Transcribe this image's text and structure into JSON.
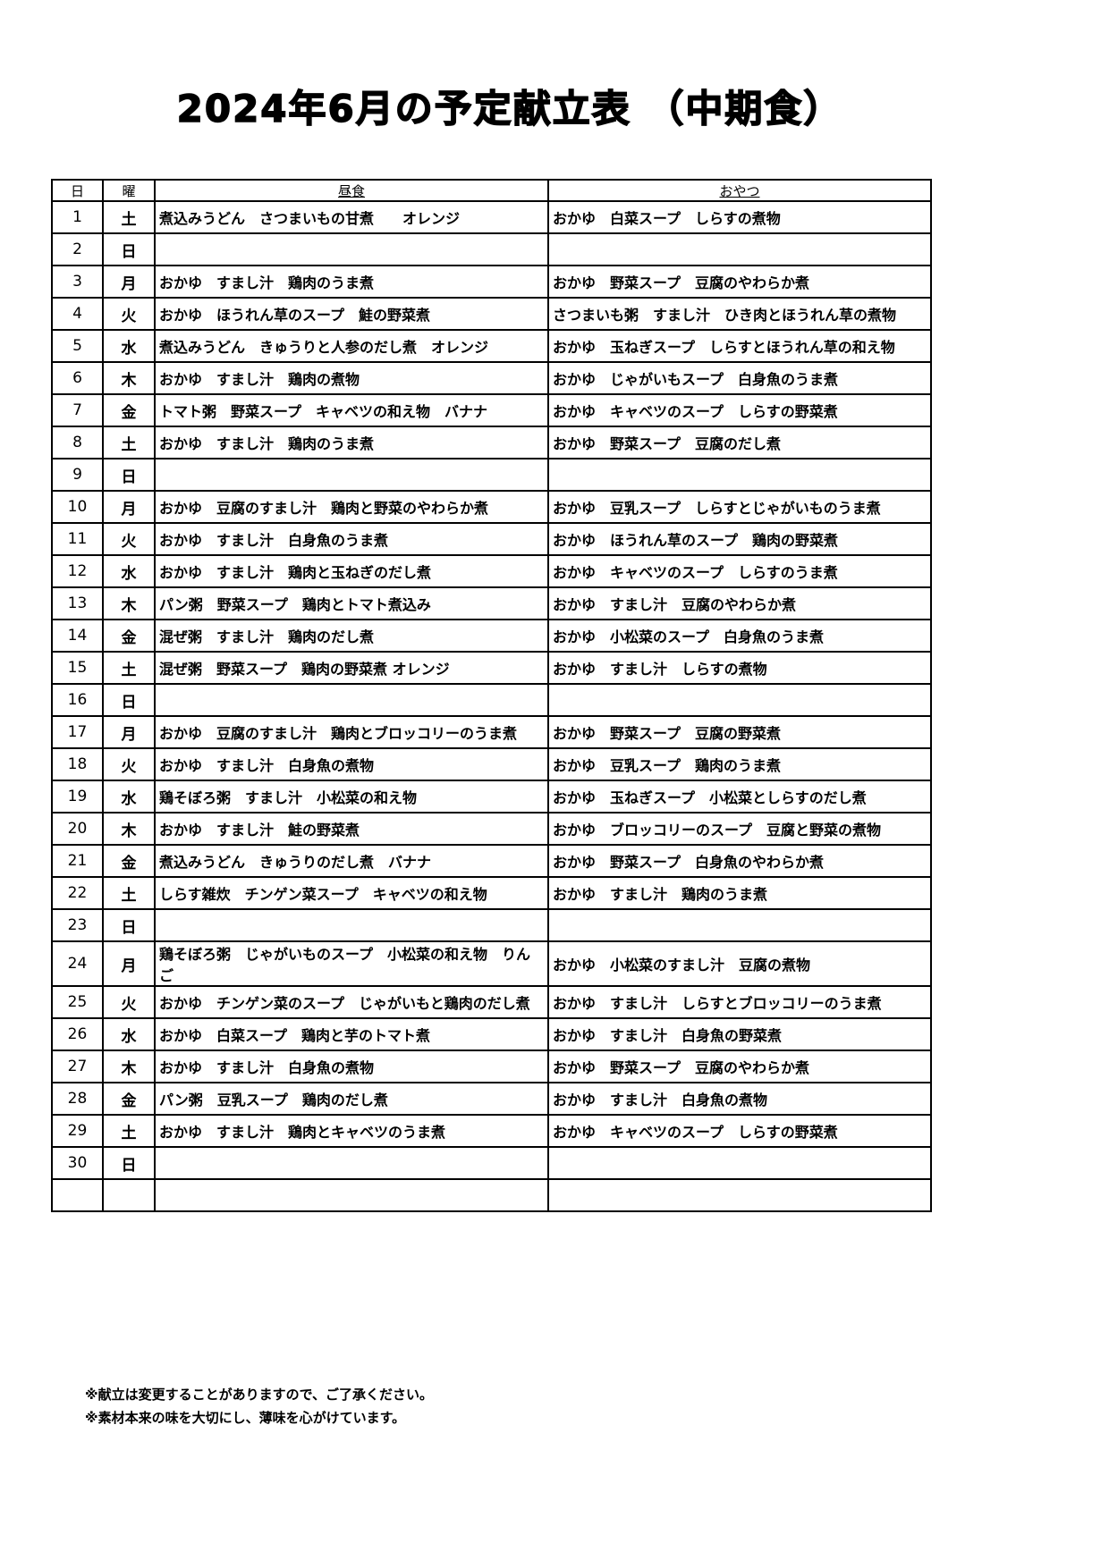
{
  "title": "2024年6月の予定献立表 （中期食）",
  "table": {
    "headers": {
      "day": "日",
      "weekday": "曜",
      "lunch": "昼食",
      "snack": "おやつ"
    },
    "rows": [
      {
        "day": "1",
        "weekday": "土",
        "lunch": "煮込みうどん　さつまいもの甘煮　　オレンジ",
        "snack": "おかゆ　白菜スープ　しらすの煮物"
      },
      {
        "day": "2",
        "weekday": "日",
        "lunch": "",
        "snack": ""
      },
      {
        "day": "3",
        "weekday": "月",
        "lunch": "おかゆ　すまし汁　鶏肉のうま煮",
        "snack": "おかゆ　野菜スープ　豆腐のやわらか煮"
      },
      {
        "day": "4",
        "weekday": "火",
        "lunch": "おかゆ　ほうれん草のスープ　鮭の野菜煮",
        "snack": "さつまいも粥　すまし汁　ひき肉とほうれん草の煮物"
      },
      {
        "day": "5",
        "weekday": "水",
        "lunch": "煮込みうどん　きゅうりと人参のだし煮　オレンジ",
        "snack": "おかゆ　玉ねぎスープ　しらすとほうれん草の和え物"
      },
      {
        "day": "6",
        "weekday": "木",
        "lunch": "おかゆ　すまし汁　鶏肉の煮物",
        "snack": "おかゆ　じゃがいもスープ　白身魚のうま煮"
      },
      {
        "day": "7",
        "weekday": "金",
        "lunch": "トマト粥　野菜スープ　キャベツの和え物　バナナ",
        "snack": "おかゆ　キャベツのスープ　しらすの野菜煮"
      },
      {
        "day": "8",
        "weekday": "土",
        "lunch": "おかゆ　すまし汁　鶏肉のうま煮",
        "snack": "おかゆ　野菜スープ　豆腐のだし煮"
      },
      {
        "day": "9",
        "weekday": "日",
        "lunch": "",
        "snack": ""
      },
      {
        "day": "10",
        "weekday": "月",
        "lunch": "おかゆ　豆腐のすまし汁　鶏肉と野菜のやわらか煮",
        "snack": "おかゆ　豆乳スープ　しらすとじゃがいものうま煮"
      },
      {
        "day": "11",
        "weekday": "火",
        "lunch": "おかゆ　すまし汁　白身魚のうま煮",
        "snack": "おかゆ　ほうれん草のスープ　鶏肉の野菜煮"
      },
      {
        "day": "12",
        "weekday": "水",
        "lunch": "おかゆ　すまし汁　鶏肉と玉ねぎのだし煮",
        "snack": "おかゆ　キャベツのスープ　しらすのうま煮"
      },
      {
        "day": "13",
        "weekday": "木",
        "lunch": "パン粥　野菜スープ　鶏肉とトマト煮込み",
        "snack": "おかゆ　すまし汁　豆腐のやわらか煮"
      },
      {
        "day": "14",
        "weekday": "金",
        "lunch": "混ぜ粥　すまし汁　鶏肉のだし煮",
        "snack": "おかゆ　小松菜のスープ　白身魚のうま煮"
      },
      {
        "day": "15",
        "weekday": "土",
        "lunch": "混ぜ粥　野菜スープ　鶏肉の野菜煮 オレンジ",
        "snack": "おかゆ　すまし汁　しらすの煮物"
      },
      {
        "day": "16",
        "weekday": "日",
        "lunch": "",
        "snack": ""
      },
      {
        "day": "17",
        "weekday": "月",
        "lunch": "おかゆ　豆腐のすまし汁　鶏肉とブロッコリーのうま煮",
        "snack": "おかゆ　野菜スープ　豆腐の野菜煮"
      },
      {
        "day": "18",
        "weekday": "火",
        "lunch": "おかゆ　すまし汁　白身魚の煮物",
        "snack": "おかゆ　豆乳スープ　鶏肉のうま煮"
      },
      {
        "day": "19",
        "weekday": "水",
        "lunch": "鶏そぼろ粥　すまし汁　小松菜の和え物",
        "snack": "おかゆ　玉ねぎスープ　小松菜としらすのだし煮"
      },
      {
        "day": "20",
        "weekday": "木",
        "lunch": "おかゆ　すまし汁　鮭の野菜煮",
        "snack": "おかゆ　ブロッコリーのスープ　豆腐と野菜の煮物"
      },
      {
        "day": "21",
        "weekday": "金",
        "lunch": "煮込みうどん　きゅうりのだし煮　バナナ",
        "snack": "おかゆ　野菜スープ　白身魚のやわらか煮"
      },
      {
        "day": "22",
        "weekday": "土",
        "lunch": "しらす雑炊　チンゲン菜スープ　キャベツの和え物",
        "snack": "おかゆ　すまし汁　鶏肉のうま煮"
      },
      {
        "day": "23",
        "weekday": "日",
        "lunch": "",
        "snack": ""
      },
      {
        "day": "24",
        "weekday": "月",
        "lunch": "鶏そぼろ粥　じゃがいものスープ　小松菜の和え物　りんご",
        "snack": "おかゆ　小松菜のすまし汁　豆腐の煮物"
      },
      {
        "day": "25",
        "weekday": "火",
        "lunch": "おかゆ　チンゲン菜のスープ　じゃがいもと鶏肉のだし煮",
        "snack": "おかゆ　すまし汁　しらすとブロッコリーのうま煮"
      },
      {
        "day": "26",
        "weekday": "水",
        "lunch": "おかゆ　白菜スープ　鶏肉と芋のトマト煮",
        "snack": "おかゆ　すまし汁　白身魚の野菜煮"
      },
      {
        "day": "27",
        "weekday": "木",
        "lunch": "おかゆ　すまし汁　白身魚の煮物",
        "snack": "おかゆ　野菜スープ　豆腐のやわらか煮"
      },
      {
        "day": "28",
        "weekday": "金",
        "lunch": "パン粥　豆乳スープ　鶏肉のだし煮",
        "snack": "おかゆ　すまし汁　白身魚の煮物"
      },
      {
        "day": "29",
        "weekday": "土",
        "lunch": "おかゆ　すまし汁　鶏肉とキャベツのうま煮",
        "snack": "おかゆ　キャベツのスープ　しらすの野菜煮"
      },
      {
        "day": "30",
        "weekday": "日",
        "lunch": "",
        "snack": ""
      },
      {
        "day": "",
        "weekday": "",
        "lunch": "",
        "snack": ""
      }
    ]
  },
  "notes": [
    "※献立は変更することがありますので、ご了承ください。",
    "※素材本来の味を大切にし、薄味を心がけています。"
  ]
}
